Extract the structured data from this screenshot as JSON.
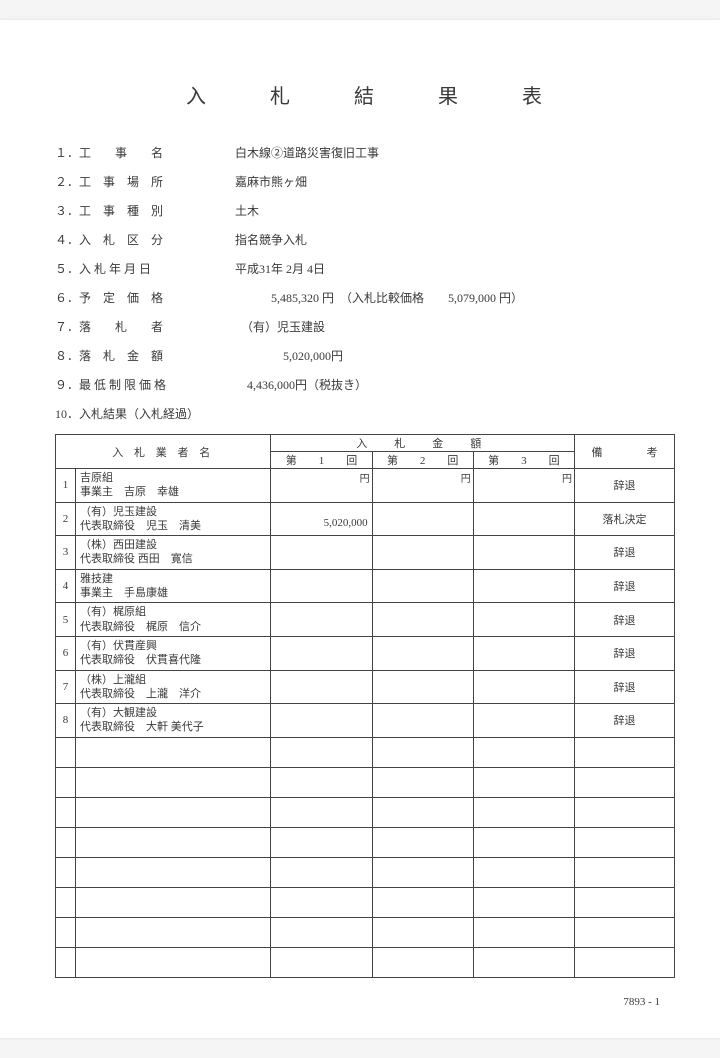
{
  "title": "入　札　結　果　表",
  "fields": [
    {
      "label": "１．工　　事　　名",
      "value": "白木線②道路災害復旧工事"
    },
    {
      "label": "２．工　事　場　所",
      "value": "嘉麻市熊ヶ畑"
    },
    {
      "label": "３．工　事　種　別",
      "value": "土木"
    },
    {
      "label": "４．入　札　区　分",
      "value": "指名競争入札"
    },
    {
      "label": "５．入 札 年 月 日",
      "value": "平成31年 2月 4日"
    },
    {
      "label": "６．予　定　価　格",
      "value": "　　　5,485,320 円　（入札比較価格　　5,079,000 円）"
    },
    {
      "label": "７．落　　札　　者",
      "value": "　（有）児玉建設"
    },
    {
      "label": "８．落　札　金　額",
      "value": "　　　　5,020,000円"
    },
    {
      "label": "９．最 低 制 限 価 格",
      "value": "　4,436,000円（税抜き）"
    },
    {
      "label": "10．入札結果（入札経過）",
      "value": ""
    }
  ],
  "table": {
    "headers": {
      "bidder": "入 札 業 者 名",
      "amount": "入　札　金　額",
      "round1": "第　　1　　回",
      "round2": "第　　2　　回",
      "round3": "第　　3　　回",
      "remark": "備　　　　考",
      "yen": "円"
    },
    "rows": [
      {
        "num": "1",
        "name": "吉原組\n事業主　吉原　幸雄",
        "r1": "",
        "r2": "",
        "r3": "",
        "remark": "辞退"
      },
      {
        "num": "2",
        "name": "（有）児玉建設\n代表取締役　児玉　清美",
        "r1": "5,020,000",
        "r2": "",
        "r3": "",
        "remark": "落札決定"
      },
      {
        "num": "3",
        "name": "（株）西田建設\n代表取締役 西田　寛信",
        "r1": "",
        "r2": "",
        "r3": "",
        "remark": "辞退"
      },
      {
        "num": "4",
        "name": "雅技建\n事業主　手島康雄",
        "r1": "",
        "r2": "",
        "r3": "",
        "remark": "辞退"
      },
      {
        "num": "5",
        "name": "（有）梶原組\n代表取締役　梶原　信介",
        "r1": "",
        "r2": "",
        "r3": "",
        "remark": "辞退"
      },
      {
        "num": "6",
        "name": "（有）伏貫産興\n代表取締役　伏貫喜代隆",
        "r1": "",
        "r2": "",
        "r3": "",
        "remark": "辞退"
      },
      {
        "num": "7",
        "name": "（株）上瀧組\n代表取締役　上瀧　洋介",
        "r1": "",
        "r2": "",
        "r3": "",
        "remark": "辞退"
      },
      {
        "num": "8",
        "name": "（有）大観建設\n代表取締役　大軒 美代子",
        "r1": "",
        "r2": "",
        "r3": "",
        "remark": "辞退"
      }
    ],
    "empty_rows": 8
  },
  "footer": "7893 - 1"
}
